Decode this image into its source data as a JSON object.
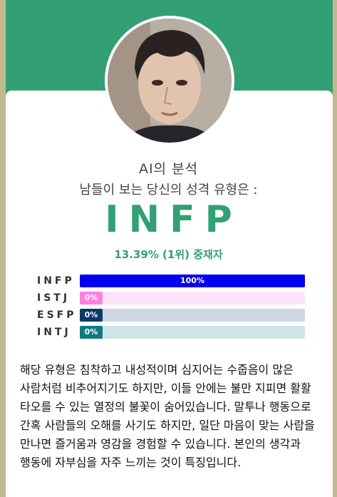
{
  "header": {
    "accent_color": "#32a074",
    "background_color": "#c2b890"
  },
  "profile": {
    "avatar_icon": "person-photo"
  },
  "analysis": {
    "heading": "AI의 분석",
    "subheading": "남들이 보는 당신의 성격 유형은 :",
    "result_type": "INFP",
    "result_stat": "13.39% (1위) 중재자"
  },
  "bars": [
    {
      "label": "INFP",
      "percent_label": "100%",
      "percent": 100,
      "fill_color": "#0000ee",
      "track_color": "#d9d9ff"
    },
    {
      "label": "ISTJ",
      "percent_label": "0%",
      "percent": 0,
      "fill_color": "#ff80e0",
      "track_color": "#ffe3fa"
    },
    {
      "label": "ESFP",
      "percent_label": "0%",
      "percent": 0,
      "fill_color": "#0a3a66",
      "track_color": "#cdd6e3"
    },
    {
      "label": "INTJ",
      "percent_label": "0%",
      "percent": 0,
      "fill_color": "#0e7a7f",
      "track_color": "#cde5e6"
    }
  ],
  "description": "해당 유형은 침착하고 내성적이며 심지어는 수줍음이 많은 사람처럼 비추어지기도 하지만, 이들 안에는 불만 지피면 활활 타오를 수 있는 열정의 불꽃이 숨어있습니다. 말투나 행동으로 간혹 사람들의 오해를 사기도 하지만, 일단 마음이 맞는 사람을 만나면 즐거움과 영감을 경험할 수 있습니다. 본인의 생각과 행동에 자부심을 자주 느끼는 것이 특징입니다."
}
